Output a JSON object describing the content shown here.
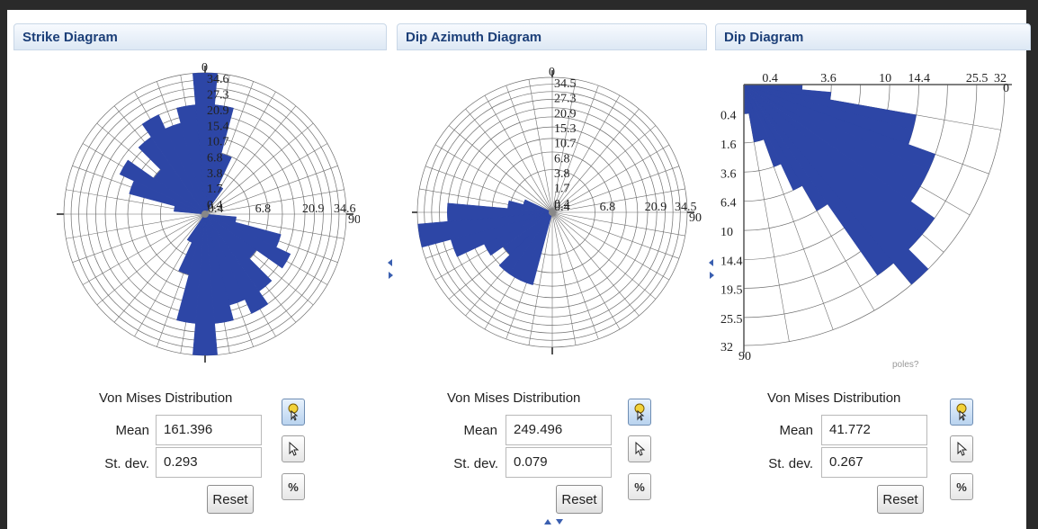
{
  "panels": [
    {
      "title": "Strike Diagram",
      "von_mises": {
        "title": "Von Mises Distribution",
        "mean_label": "Mean",
        "mean_value": "161.396",
        "stdev_label": "St. dev.",
        "stdev_value": "0.293",
        "reset_label": "Reset"
      },
      "scale_labels": [
        "34.6",
        "27.3",
        "20.9",
        "15.4",
        "10.7",
        "6.8",
        "3.8",
        "1.7",
        "0.4"
      ],
      "axis_labels": {
        "top": "0",
        "right": "90"
      },
      "rose_petals": [
        {
          "azimuth": 0,
          "value": 34.6
        },
        {
          "azimuth": 10,
          "value": 20.9
        },
        {
          "azimuth": 20,
          "value": 6.8
        },
        {
          "azimuth": 30,
          "value": 1.7
        },
        {
          "azimuth": 100,
          "value": 1.7
        },
        {
          "azimuth": 110,
          "value": 10.7
        },
        {
          "azimuth": 120,
          "value": 15.4
        },
        {
          "azimuth": 130,
          "value": 6.8
        },
        {
          "azimuth": 140,
          "value": 15.4
        },
        {
          "azimuth": 150,
          "value": 20.9
        },
        {
          "azimuth": 160,
          "value": 15.4
        },
        {
          "azimuth": 170,
          "value": 20.9
        },
        {
          "azimuth": 180,
          "value": 34.6
        },
        {
          "azimuth": 190,
          "value": 20.9
        },
        {
          "azimuth": 200,
          "value": 6.8
        },
        {
          "azimuth": 210,
          "value": 1.7
        },
        {
          "azimuth": 280,
          "value": 1.7
        },
        {
          "azimuth": 290,
          "value": 10.7
        },
        {
          "azimuth": 300,
          "value": 15.4
        },
        {
          "azimuth": 310,
          "value": 6.8
        },
        {
          "azimuth": 320,
          "value": 15.4
        },
        {
          "azimuth": 330,
          "value": 20.9
        },
        {
          "azimuth": 340,
          "value": 15.4
        },
        {
          "azimuth": 350,
          "value": 20.9
        }
      ]
    },
    {
      "title": "Dip Azimuth Diagram",
      "von_mises": {
        "title": "Von Mises Distribution",
        "mean_label": "Mean",
        "mean_value": "249.496",
        "stdev_label": "St. dev.",
        "stdev_value": "0.079",
        "reset_label": "Reset"
      },
      "scale_labels": [
        "34.5",
        "27.3",
        "20.9",
        "15.3",
        "10.7",
        "6.8",
        "3.8",
        "1.7",
        "0.4"
      ],
      "axis_labels": {
        "top": "0",
        "right": "90"
      },
      "rose_petals": [
        {
          "azimuth": 200,
          "value": 10.7
        },
        {
          "azimuth": 210,
          "value": 10.7
        },
        {
          "azimuth": 220,
          "value": 10.7
        },
        {
          "azimuth": 230,
          "value": 6.8
        },
        {
          "azimuth": 240,
          "value": 10.7
        },
        {
          "azimuth": 250,
          "value": 20.9
        },
        {
          "azimuth": 260,
          "value": 34.5
        },
        {
          "azimuth": 270,
          "value": 20.9
        },
        {
          "azimuth": 280,
          "value": 3.8
        },
        {
          "azimuth": 290,
          "value": 1.7
        }
      ]
    },
    {
      "title": "Dip Diagram",
      "von_mises": {
        "title": "Von Mises Distribution",
        "mean_label": "Mean",
        "mean_value": "41.772",
        "stdev_label": "St. dev.",
        "stdev_value": "0.267",
        "reset_label": "Reset"
      },
      "scale_labels_top": [
        "0.4",
        "3.6",
        "10",
        "14.4",
        "25.5",
        "32"
      ],
      "scale_labels_left": [
        "0.4",
        "1.6",
        "3.6",
        "6.4",
        "10",
        "14.4",
        "19.5",
        "25.5",
        "32"
      ],
      "axis_labels": {
        "top_right": "0",
        "bottom": "90"
      },
      "footer_text": "poles?",
      "sectors": [
        {
          "dip": 0,
          "value": 1.6
        },
        {
          "dip": 5,
          "value": 3.6
        },
        {
          "dip": 10,
          "value": 14.4
        },
        {
          "dip": 15,
          "value": 14.4
        },
        {
          "dip": 20,
          "value": 19.5
        },
        {
          "dip": 25,
          "value": 19.5
        },
        {
          "dip": 30,
          "value": 19.5
        },
        {
          "dip": 35,
          "value": 25.5
        },
        {
          "dip": 40,
          "value": 25.5
        },
        {
          "dip": 45,
          "value": 32
        },
        {
          "dip": 50,
          "value": 25.5
        },
        {
          "dip": 55,
          "value": 10
        },
        {
          "dip": 60,
          "value": 6.4
        },
        {
          "dip": 65,
          "value": 3.6
        },
        {
          "dip": 70,
          "value": 1.6
        },
        {
          "dip": 75,
          "value": 1.6
        },
        {
          "dip": 80,
          "value": 0.4
        },
        {
          "dip": 85,
          "value": 0.4
        }
      ]
    }
  ],
  "tools": {
    "select_icon": "pointer-hand-icon",
    "arrow_icon": "arrow-pointer-icon",
    "percent_label": "%"
  },
  "colors": {
    "petal": "#2d46a6",
    "header_text": "#1c3f78",
    "grid": "#6f6f6f"
  }
}
